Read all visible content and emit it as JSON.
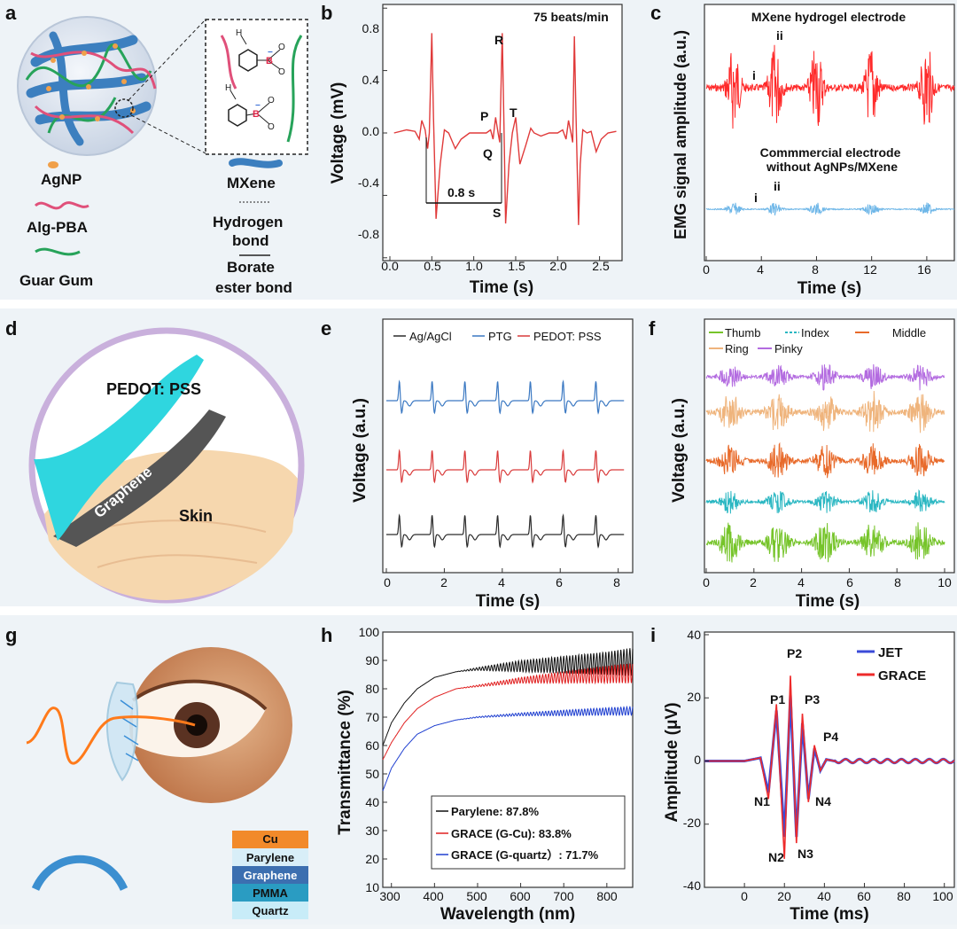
{
  "panels": {
    "a": {
      "label": "a",
      "legend": [
        "AgNP",
        "Alg-PBA",
        "Guar Gum",
        "MXene",
        "Hydrogen",
        "bond",
        "Borate",
        "ester bond"
      ],
      "atoms": {
        "b": "B",
        "o": "O",
        "h": "H",
        "minus": "−"
      },
      "colors": {
        "alg_pba": "#e0507a",
        "guar": "#27a35a",
        "mxene": "#3c7fbf",
        "agnp": "#f0a04a",
        "boron": "#e0284a"
      }
    },
    "b": {
      "label": "b",
      "rate_text": "75 beats/min",
      "peaks": {
        "P": "P",
        "Q": "Q",
        "R": "R",
        "S": "S",
        "T": "T"
      },
      "interval_text": "0.8 s",
      "xlabel": "Time (s)",
      "ylabel": "Voltage (mV)",
      "xticks": [
        "0.0",
        "0.5",
        "1.0",
        "1.5",
        "2.0",
        "2.5"
      ],
      "yticks": [
        "0.8",
        "0.4",
        "0.0",
        "-0.4",
        "-0.8"
      ]
    },
    "c": {
      "label": "c",
      "title_top": "MXene hydrogel electrode",
      "title_bottom_1": "Commmercial electrode",
      "title_bottom_2": "without AgNPs/MXene",
      "marks": {
        "i": "i",
        "ii": "ii"
      },
      "xlabel": "Time (s)",
      "ylabel": "EMG signal amplitude (a.u.)",
      "xticks": [
        "0",
        "4",
        "8",
        "12",
        "16"
      ]
    },
    "d": {
      "label": "d",
      "layer_top": "PEDOT: PSS",
      "layer_mid": "Graphene",
      "layer_skin": "Skin"
    },
    "e": {
      "label": "e",
      "legend": [
        "Ag/AgCl",
        "PTG",
        "PEDOT: PSS"
      ],
      "xlabel": "Time (s)",
      "ylabel": "Voltage (a.u.)",
      "xticks": [
        "0",
        "2",
        "4",
        "6",
        "8"
      ]
    },
    "f": {
      "label": "f",
      "legend": [
        "Thumb",
        "Index",
        "Middle",
        "Ring",
        "Pinky"
      ],
      "xlabel": "Time (s)",
      "ylabel": "Voltage (a.u.)",
      "xticks": [
        "0",
        "2",
        "4",
        "6",
        "8",
        "10"
      ]
    },
    "g": {
      "label": "g",
      "layers": [
        "Cu",
        "Parylene",
        "Graphene",
        "PMMA",
        "Quartz"
      ]
    },
    "h": {
      "label": "h",
      "xlabel": "Wavelength (nm)",
      "ylabel": "Transmittance (%)",
      "xticks": [
        "300",
        "400",
        "500",
        "600",
        "700",
        "800"
      ],
      "yticks": [
        "100",
        "90",
        "80",
        "70",
        "60",
        "50",
        "40",
        "30",
        "20",
        "10"
      ],
      "legend": [
        "Parylene: 87.8%",
        "GRACE (G-Cu): 83.8%",
        "GRACE (G-quartz）: 71.7%"
      ]
    },
    "i": {
      "label": "i",
      "legend": [
        "JET",
        "GRACE"
      ],
      "peaks": {
        "P1": "P1",
        "P2": "P2",
        "P3": "P3",
        "P4": "P4",
        "N1": "N1",
        "N2": "N2",
        "N3": "N3",
        "N4": "N4"
      },
      "xlabel": "Time (ms)",
      "ylabel": "Amplitude (μV)",
      "xticks": [
        "0",
        "20",
        "40",
        "60",
        "80",
        "100"
      ],
      "yticks": [
        "40",
        "20",
        "0",
        "-20",
        "-40"
      ]
    }
  },
  "chart_data": [
    {
      "panel": "b",
      "type": "line",
      "title": "75 beats/min",
      "xlabel": "Time (s)",
      "ylabel": "Voltage (mV)",
      "xlim": [
        0,
        2.8
      ],
      "ylim": [
        -1.0,
        1.0
      ],
      "series": [
        {
          "color": "#e03a3a",
          "x": [
            0.05,
            0.2,
            0.3,
            0.35,
            0.38,
            0.42,
            0.45,
            0.47,
            0.5,
            0.52,
            0.55,
            0.6,
            0.65,
            0.7,
            0.78,
            0.85,
            0.95,
            1.05,
            1.15,
            1.2,
            1.23,
            1.26,
            1.29,
            1.31,
            1.34,
            1.36,
            1.38,
            1.42,
            1.46,
            1.5,
            1.55,
            1.62,
            1.68,
            1.72,
            1.8,
            1.9,
            2.0,
            2.06,
            2.1,
            2.13,
            2.16,
            2.18,
            2.2,
            2.22,
            2.25,
            2.27,
            2.3,
            2.35,
            2.4,
            2.46,
            2.52,
            2.6,
            2.7
          ],
          "y": [
            0.0,
            0.02,
            0.01,
            -0.04,
            0.08,
            0.02,
            -0.1,
            0.0,
            0.64,
            0.1,
            -0.55,
            -0.2,
            0.02,
            0.0,
            -0.1,
            -0.04,
            0.0,
            0.0,
            0.0,
            0.02,
            -0.04,
            0.1,
            0.0,
            -0.06,
            0.64,
            0.06,
            -0.58,
            -0.2,
            0.0,
            0.1,
            -0.2,
            -0.08,
            0.03,
            0.0,
            -0.02,
            0.0,
            0.0,
            0.02,
            -0.04,
            0.08,
            0.0,
            -0.06,
            0.62,
            0.1,
            -0.59,
            -0.2,
            0.02,
            0.0,
            0.01,
            -0.12,
            -0.04,
            0.0,
            0.01
          ]
        }
      ]
    },
    {
      "panel": "c",
      "type": "line",
      "xlabel": "Time (s)",
      "ylabel": "EMG signal amplitude (a.u.)",
      "xlim": [
        0,
        18
      ],
      "burst_centers_s": [
        2,
        5,
        8,
        12,
        16
      ],
      "series": [
        {
          "name": "MXene hydrogel electrode",
          "color": "#ff2a2a",
          "relative_amplitude": 1.0
        },
        {
          "name": "Commmercial electrode without AgNPs/MXene",
          "color": "#6fb7e8",
          "relative_amplitude": 0.15
        }
      ]
    },
    {
      "panel": "e",
      "type": "line",
      "xlabel": "Time (s)",
      "ylabel": "Voltage (a.u.)",
      "xlim": [
        0,
        8.5
      ],
      "beat_times_s": [
        0.45,
        1.58,
        2.71,
        3.84,
        4.97,
        6.1,
        7.23
      ],
      "series": [
        {
          "name": "PTG",
          "color": "#3a78c2"
        },
        {
          "name": "PEDOT: PSS",
          "color": "#d93a3a"
        },
        {
          "name": "Ag/AgCl",
          "color": "#2a2a2a"
        }
      ]
    },
    {
      "panel": "f",
      "type": "line",
      "xlabel": "Time (s)",
      "ylabel": "Voltage (a.u.)",
      "xlim": [
        0,
        10
      ],
      "burst_centers_s": [
        1,
        3,
        5,
        7,
        9
      ],
      "series": [
        {
          "name": "Pinky",
          "color": "#b36be0"
        },
        {
          "name": "Ring",
          "color": "#efb47c"
        },
        {
          "name": "Middle",
          "color": "#e86a2a"
        },
        {
          "name": "Index",
          "color": "#2ab7c2"
        },
        {
          "name": "Thumb",
          "color": "#76c42a"
        }
      ]
    },
    {
      "panel": "h",
      "type": "line",
      "xlabel": "Wavelength (nm)",
      "ylabel": "Transmittance (%)",
      "xlim": [
        280,
        860
      ],
      "ylim": [
        10,
        100
      ],
      "series": [
        {
          "name": "Parylene: 87.8%",
          "color": "#111111",
          "x": [
            280,
            300,
            330,
            360,
            400,
            450,
            500,
            600,
            700,
            800,
            860
          ],
          "y": [
            60,
            68,
            75,
            80,
            84,
            86,
            87,
            88,
            88.5,
            89,
            89.5
          ],
          "oscillation_amplitude": [
            0,
            0,
            0,
            0,
            0,
            0,
            0.5,
            2,
            3,
            4,
            5
          ]
        },
        {
          "name": "GRACE (G-Cu): 83.8%",
          "color": "#e02020",
          "x": [
            280,
            300,
            330,
            360,
            400,
            450,
            500,
            600,
            700,
            800,
            860
          ],
          "y": [
            55,
            61,
            68,
            73,
            77,
            80,
            81,
            83,
            84,
            85,
            85.5
          ],
          "oscillation_amplitude": [
            0,
            0,
            0,
            0,
            0,
            0,
            0.3,
            1,
            2,
            3,
            3.5
          ]
        },
        {
          "name": "GRACE (G-quartz）: 71.7%",
          "color": "#2040d0",
          "x": [
            280,
            300,
            330,
            360,
            400,
            450,
            500,
            600,
            700,
            800,
            860
          ],
          "y": [
            44,
            52,
            59,
            64,
            67,
            69,
            70,
            71,
            71.5,
            72,
            72.2
          ],
          "oscillation_amplitude": [
            0,
            0,
            0,
            0,
            0,
            0,
            0.2,
            0.5,
            1,
            1.3,
            1.5
          ]
        }
      ]
    },
    {
      "panel": "i",
      "type": "line",
      "xlabel": "Time (ms)",
      "ylabel": "Amplitude (μV)",
      "xlim": [
        -20,
        105
      ],
      "ylim": [
        -40,
        40
      ],
      "series": [
        {
          "name": "JET",
          "color": "#3b4bd8",
          "x": [
            -20,
            0,
            8,
            12,
            16,
            20,
            23,
            26,
            29,
            32,
            35,
            38,
            41,
            45,
            50,
            60,
            80,
            100
          ],
          "y": [
            0,
            0,
            1,
            -10,
            16,
            -24,
            21,
            -24,
            12,
            -12,
            4,
            -3,
            0.5,
            0,
            0,
            0,
            0,
            0
          ]
        },
        {
          "name": "GRACE",
          "color": "#ee2a2a",
          "x": [
            -20,
            0,
            8,
            12,
            16,
            20,
            23,
            26,
            29,
            32,
            35,
            38,
            41,
            45,
            50,
            60,
            80,
            100
          ],
          "y": [
            0,
            0,
            1,
            -12,
            18,
            -31,
            27,
            -26,
            15,
            -13,
            5,
            -3,
            0.5,
            0,
            0,
            0,
            0,
            0
          ]
        }
      ]
    }
  ]
}
